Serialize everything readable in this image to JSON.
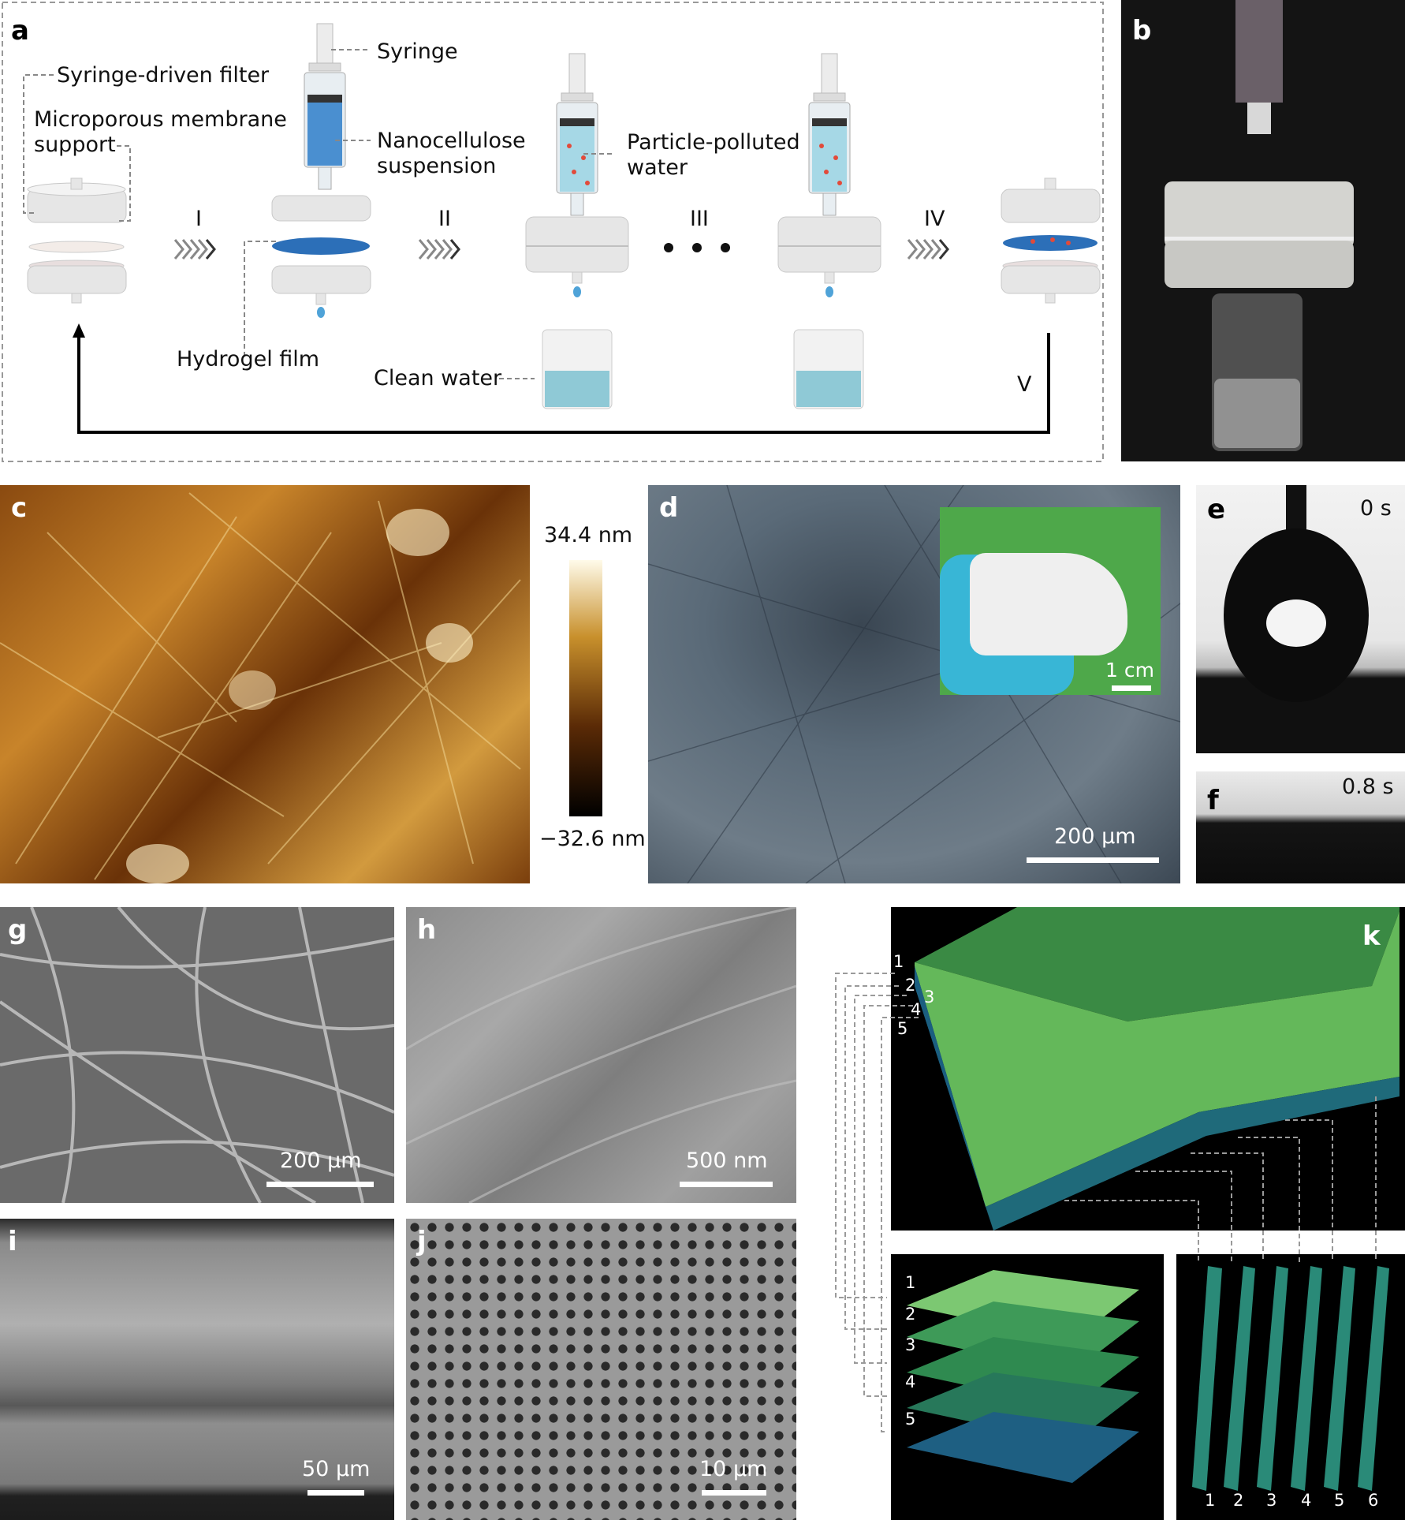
{
  "panel_a": {
    "label": "a",
    "syringe_driven_filter": "Syringe-driven filter",
    "microporous_line1": "Microporous membrane",
    "microporous_line2": "support",
    "syringe": "Syringe",
    "nano_line1": "Nanocellulose",
    "nano_line2": "suspension",
    "particle_line1": "Particle-polluted",
    "particle_line2": "water",
    "hydrogel_film": "Hydrogel film",
    "clean_water": "Clean water",
    "steps": [
      "I",
      "II",
      "III",
      "IV",
      "V"
    ]
  },
  "panel_b": {
    "label": "b"
  },
  "panel_c": {
    "label": "c",
    "scale_max": "34.4 nm",
    "scale_min": "−32.6 nm"
  },
  "panel_d": {
    "label": "d",
    "scale": "200 μm",
    "inset_scale": "1 cm"
  },
  "panel_e": {
    "label": "e",
    "time": "0 s"
  },
  "panel_f": {
    "label": "f",
    "time": "0.8 s"
  },
  "panel_g": {
    "label": "g",
    "scale": "200 μm"
  },
  "panel_h": {
    "label": "h",
    "scale": "500 nm"
  },
  "panel_i": {
    "label": "i",
    "scale": "50 μm"
  },
  "panel_j": {
    "label": "j",
    "scale": "10 μm"
  },
  "panel_k": {
    "label": "k",
    "top_layers": [
      "1",
      "2",
      "3",
      "4",
      "5"
    ],
    "stack_layers": [
      "1",
      "2",
      "3",
      "4",
      "5"
    ],
    "slices": [
      "1",
      "2",
      "3",
      "4",
      "5",
      "6"
    ]
  }
}
